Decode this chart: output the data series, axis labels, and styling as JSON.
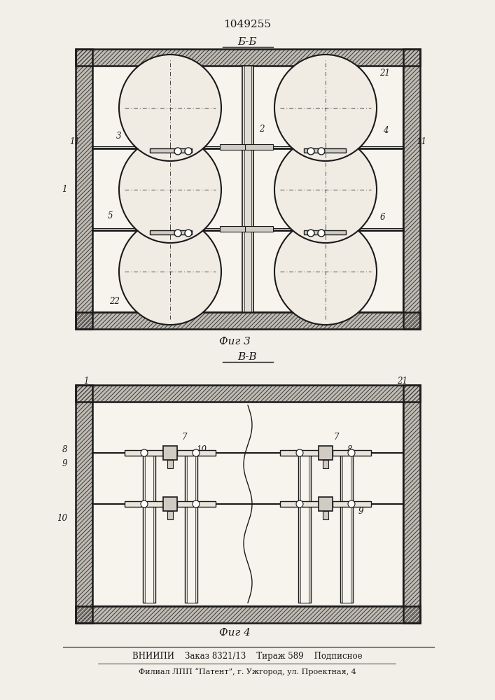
{
  "patent_number": "1049255",
  "fig3_section": "Б-Б",
  "fig4_section": "В-В",
  "fig3_caption": "Фиг 3",
  "fig4_caption": "Фиг 4",
  "footer_line1": "ВНИИПИ    Заказ 8321/13    Тираж 589    Подписное",
  "footer_line2": "Филиал ЛПП “Патент”, г. Ужгород, ул. Проектная, 4",
  "bg_color": "#f2efe8",
  "line_color": "#1a1a1a",
  "wall_fill": "#b8b4aa",
  "inner_fill": "#f7f4ee"
}
